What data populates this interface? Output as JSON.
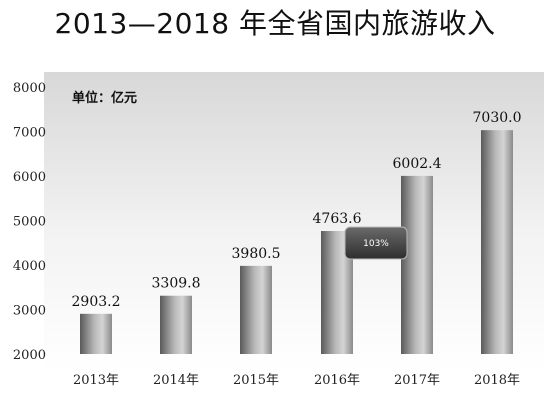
{
  "chart_data": {
    "type": "bar",
    "title": "2013—2018 年全省国内旅游收入",
    "unit_label": "单位：亿元",
    "categories": [
      "2013年",
      "2014年",
      "2015年",
      "2016年",
      "2017年",
      "2018年"
    ],
    "values": [
      2903.2,
      3309.8,
      3980.5,
      4763.6,
      6002.4,
      7030.0
    ],
    "value_labels": [
      "2903.2",
      "3309.8",
      "3980.5",
      "4763.6",
      "6002.4",
      "7030.0"
    ],
    "yticks": [
      "8000",
      "7000",
      "6000",
      "5000",
      "4000",
      "3000",
      "2000"
    ],
    "ylim": [
      2000,
      8000
    ],
    "grid": false,
    "annotation": "103%",
    "colors": {
      "bar_dark": "#5a5a5a",
      "bar_light": "#d4d4d4",
      "background_top": "#d8d8d8",
      "background_bottom": "#ffffff",
      "badge": "#3a3a3a"
    }
  }
}
